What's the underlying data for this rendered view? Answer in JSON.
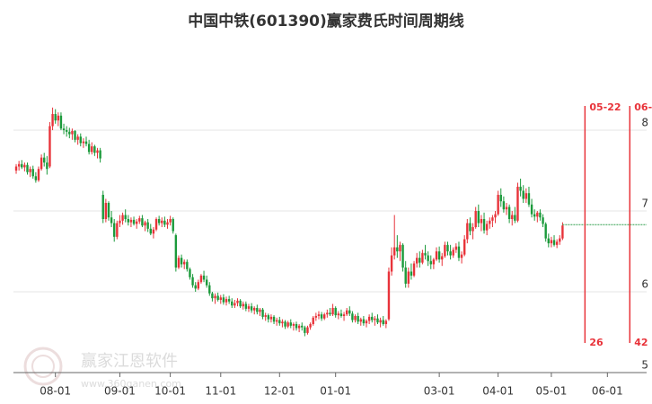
{
  "chart_data": {
    "type": "candlestick",
    "title": "中国中铁(601390)赢家费氏时间周期线",
    "up_color": "#e8333a",
    "down_color": "#1b9a3b",
    "grid": true,
    "ylim": [
      5,
      9
    ],
    "yticks": [
      5,
      6,
      7,
      8
    ],
    "xlim": [
      -1,
      225
    ],
    "xticks": [
      {
        "value": 14,
        "label": "08-01"
      },
      {
        "value": 37,
        "label": "09-01"
      },
      {
        "value": 55,
        "label": "10-01"
      },
      {
        "value": 73,
        "label": "11-01"
      },
      {
        "value": 94,
        "label": "12-01"
      },
      {
        "value": 114,
        "label": "01-01"
      },
      {
        "value": 151,
        "label": "03-01"
      },
      {
        "value": 172,
        "label": "04-01"
      },
      {
        "value": 191,
        "label": "05-01"
      },
      {
        "value": 211,
        "label": "06-01"
      }
    ],
    "reference_line": {
      "value": 6.83,
      "color": "#2e9e4a"
    },
    "cycle_lines": [
      {
        "x": 203,
        "label": "05-22",
        "count": 26,
        "color": "#e8333a"
      },
      {
        "x": 219,
        "label": "06-",
        "count": 42,
        "color": "#e8333a"
      }
    ],
    "watermark": {
      "name": "赢家江恩软件",
      "url": "www.360ganen.com"
    },
    "ohlc": [
      [
        7.5,
        7.58,
        7.46,
        7.55
      ],
      [
        7.55,
        7.62,
        7.5,
        7.58
      ],
      [
        7.58,
        7.63,
        7.52,
        7.54
      ],
      [
        7.54,
        7.6,
        7.49,
        7.57
      ],
      [
        7.57,
        7.6,
        7.45,
        7.48
      ],
      [
        7.48,
        7.55,
        7.42,
        7.52
      ],
      [
        7.52,
        7.56,
        7.4,
        7.43
      ],
      [
        7.43,
        7.48,
        7.35,
        7.38
      ],
      [
        7.38,
        7.55,
        7.36,
        7.52
      ],
      [
        7.52,
        7.7,
        7.5,
        7.66
      ],
      [
        7.66,
        7.72,
        7.55,
        7.6
      ],
      [
        7.6,
        7.68,
        7.45,
        7.52
      ],
      [
        7.55,
        8.1,
        7.53,
        8.05
      ],
      [
        8.05,
        8.28,
        8.0,
        8.2
      ],
      [
        8.2,
        8.26,
        8.08,
        8.12
      ],
      [
        8.12,
        8.22,
        8.05,
        8.18
      ],
      [
        8.18,
        8.22,
        8.0,
        8.02
      ],
      [
        8.02,
        8.08,
        7.95,
        8.0
      ],
      [
        8.0,
        8.05,
        7.92,
        7.98
      ],
      [
        7.98,
        8.03,
        7.9,
        7.95
      ],
      [
        7.95,
        8.02,
        7.88,
        7.99
      ],
      [
        7.99,
        8.0,
        7.85,
        7.88
      ],
      [
        7.88,
        7.95,
        7.82,
        7.92
      ],
      [
        7.92,
        7.96,
        7.8,
        7.84
      ],
      [
        7.84,
        7.9,
        7.78,
        7.86
      ],
      [
        7.86,
        7.92,
        7.8,
        7.83
      ],
      [
        7.83,
        7.88,
        7.7,
        7.73
      ],
      [
        7.73,
        7.85,
        7.7,
        7.8
      ],
      [
        7.8,
        7.82,
        7.68,
        7.72
      ],
      [
        7.72,
        7.78,
        7.65,
        7.75
      ],
      [
        7.75,
        7.78,
        7.6,
        7.65
      ],
      [
        7.2,
        7.25,
        6.85,
        6.9
      ],
      [
        6.9,
        7.15,
        6.86,
        7.1
      ],
      [
        7.1,
        7.12,
        6.88,
        6.92
      ],
      [
        6.92,
        7.0,
        6.8,
        6.85
      ],
      [
        6.85,
        6.9,
        6.62,
        6.68
      ],
      [
        6.68,
        6.88,
        6.65,
        6.85
      ],
      [
        6.85,
        6.95,
        6.8,
        6.88
      ],
      [
        6.88,
        6.98,
        6.83,
        6.95
      ],
      [
        6.95,
        7.02,
        6.86,
        6.9
      ],
      [
        6.9,
        6.95,
        6.82,
        6.86
      ],
      [
        6.86,
        6.92,
        6.8,
        6.89
      ],
      [
        6.89,
        6.93,
        6.82,
        6.84
      ],
      [
        6.84,
        6.9,
        6.78,
        6.87
      ],
      [
        6.87,
        6.94,
        6.84,
        6.91
      ],
      [
        6.91,
        6.95,
        6.8,
        6.82
      ],
      [
        6.82,
        6.88,
        6.75,
        6.86
      ],
      [
        6.86,
        6.9,
        6.74,
        6.78
      ],
      [
        6.78,
        6.84,
        6.7,
        6.72
      ],
      [
        6.72,
        6.8,
        6.66,
        6.77
      ],
      [
        6.77,
        6.92,
        6.75,
        6.9
      ],
      [
        6.9,
        6.94,
        6.82,
        6.85
      ],
      [
        6.85,
        6.92,
        6.8,
        6.88
      ],
      [
        6.88,
        6.93,
        6.8,
        6.83
      ],
      [
        6.83,
        6.9,
        6.78,
        6.86
      ],
      [
        6.86,
        6.94,
        6.82,
        6.9
      ],
      [
        6.9,
        6.92,
        6.72,
        6.75
      ],
      [
        6.7,
        6.72,
        6.25,
        6.3
      ],
      [
        6.3,
        6.45,
        6.28,
        6.42
      ],
      [
        6.42,
        6.46,
        6.3,
        6.34
      ],
      [
        6.34,
        6.4,
        6.28,
        6.37
      ],
      [
        6.37,
        6.4,
        6.25,
        6.28
      ],
      [
        6.28,
        6.3,
        6.15,
        6.18
      ],
      [
        6.18,
        6.22,
        6.05,
        6.08
      ],
      [
        6.08,
        6.12,
        6.0,
        6.04
      ],
      [
        6.04,
        6.15,
        6.02,
        6.12
      ],
      [
        6.12,
        6.22,
        6.1,
        6.2
      ],
      [
        6.2,
        6.26,
        6.12,
        6.15
      ],
      [
        6.15,
        6.2,
        6.05,
        6.08
      ],
      [
        6.08,
        6.12,
        5.95,
        5.98
      ],
      [
        5.98,
        6.0,
        5.88,
        5.92
      ],
      [
        5.92,
        5.98,
        5.85,
        5.95
      ],
      [
        5.95,
        5.99,
        5.88,
        5.9
      ],
      [
        5.9,
        5.96,
        5.85,
        5.93
      ],
      [
        5.93,
        5.97,
        5.84,
        5.87
      ],
      [
        5.87,
        5.94,
        5.83,
        5.91
      ],
      [
        5.91,
        5.95,
        5.85,
        5.88
      ],
      [
        5.88,
        5.92,
        5.8,
        5.83
      ],
      [
        5.83,
        5.9,
        5.8,
        5.86
      ],
      [
        5.86,
        5.92,
        5.82,
        5.89
      ],
      [
        5.89,
        5.91,
        5.8,
        5.82
      ],
      [
        5.82,
        5.88,
        5.78,
        5.85
      ],
      [
        5.85,
        5.88,
        5.76,
        5.79
      ],
      [
        5.79,
        5.85,
        5.75,
        5.82
      ],
      [
        5.82,
        5.86,
        5.74,
        5.77
      ],
      [
        5.77,
        5.82,
        5.72,
        5.8
      ],
      [
        5.8,
        5.84,
        5.72,
        5.75
      ],
      [
        5.75,
        5.8,
        5.7,
        5.78
      ],
      [
        5.78,
        5.8,
        5.66,
        5.69
      ],
      [
        5.69,
        5.74,
        5.64,
        5.71
      ],
      [
        5.71,
        5.73,
        5.62,
        5.66
      ],
      [
        5.66,
        5.72,
        5.62,
        5.69
      ],
      [
        5.69,
        5.71,
        5.6,
        5.63
      ],
      [
        5.63,
        5.68,
        5.58,
        5.65
      ],
      [
        5.65,
        5.69,
        5.58,
        5.61
      ],
      [
        5.61,
        5.66,
        5.56,
        5.63
      ],
      [
        5.63,
        5.65,
        5.54,
        5.57
      ],
      [
        5.57,
        5.64,
        5.55,
        5.62
      ],
      [
        5.62,
        5.66,
        5.55,
        5.58
      ],
      [
        5.58,
        5.62,
        5.52,
        5.6
      ],
      [
        5.6,
        5.63,
        5.52,
        5.55
      ],
      [
        5.55,
        5.6,
        5.5,
        5.58
      ],
      [
        5.58,
        5.62,
        5.52,
        5.56
      ],
      [
        5.56,
        5.58,
        5.45,
        5.49
      ],
      [
        5.49,
        5.58,
        5.47,
        5.56
      ],
      [
        5.56,
        5.62,
        5.53,
        5.6
      ],
      [
        5.6,
        5.7,
        5.58,
        5.68
      ],
      [
        5.68,
        5.74,
        5.64,
        5.7
      ],
      [
        5.7,
        5.76,
        5.66,
        5.72
      ],
      [
        5.72,
        5.75,
        5.64,
        5.67
      ],
      [
        5.67,
        5.74,
        5.65,
        5.72
      ],
      [
        5.72,
        5.78,
        5.68,
        5.74
      ],
      [
        5.74,
        5.8,
        5.7,
        5.72
      ],
      [
        5.72,
        5.85,
        5.7,
        5.8
      ],
      [
        5.8,
        5.82,
        5.68,
        5.71
      ],
      [
        5.71,
        5.76,
        5.66,
        5.73
      ],
      [
        5.73,
        5.78,
        5.68,
        5.7
      ],
      [
        5.7,
        5.75,
        5.64,
        5.72
      ],
      [
        5.72,
        5.8,
        5.7,
        5.77
      ],
      [
        5.77,
        5.82,
        5.7,
        5.73
      ],
      [
        5.73,
        5.76,
        5.62,
        5.65
      ],
      [
        5.65,
        5.72,
        5.62,
        5.7
      ],
      [
        5.7,
        5.74,
        5.6,
        5.63
      ],
      [
        5.63,
        5.68,
        5.58,
        5.66
      ],
      [
        5.66,
        5.7,
        5.58,
        5.61
      ],
      [
        5.61,
        5.66,
        5.56,
        5.64
      ],
      [
        5.64,
        5.72,
        5.6,
        5.69
      ],
      [
        5.69,
        5.74,
        5.62,
        5.65
      ],
      [
        5.65,
        5.7,
        5.58,
        5.67
      ],
      [
        5.67,
        5.72,
        5.6,
        5.62
      ],
      [
        5.62,
        5.68,
        5.56,
        5.65
      ],
      [
        5.65,
        5.7,
        5.58,
        5.6
      ],
      [
        5.6,
        5.66,
        5.55,
        5.64
      ],
      [
        5.66,
        6.3,
        5.64,
        6.25
      ],
      [
        6.25,
        6.55,
        6.2,
        6.45
      ],
      [
        6.45,
        6.95,
        6.4,
        6.55
      ],
      [
        6.55,
        6.7,
        6.42,
        6.5
      ],
      [
        6.5,
        6.62,
        6.38,
        6.58
      ],
      [
        6.58,
        6.6,
        6.25,
        6.3
      ],
      [
        6.3,
        6.38,
        6.05,
        6.1
      ],
      [
        6.1,
        6.3,
        6.05,
        6.25
      ],
      [
        6.25,
        6.35,
        6.15,
        6.2
      ],
      [
        6.2,
        6.38,
        6.18,
        6.35
      ],
      [
        6.35,
        6.48,
        6.3,
        6.42
      ],
      [
        6.42,
        6.5,
        6.3,
        6.36
      ],
      [
        6.36,
        6.52,
        6.34,
        6.48
      ],
      [
        6.48,
        6.58,
        6.4,
        6.45
      ],
      [
        6.45,
        6.5,
        6.32,
        6.38
      ],
      [
        6.38,
        6.45,
        6.28,
        6.34
      ],
      [
        6.34,
        6.42,
        6.28,
        6.4
      ],
      [
        6.4,
        6.55,
        6.38,
        6.5
      ],
      [
        6.5,
        6.56,
        6.36,
        6.4
      ],
      [
        6.4,
        6.48,
        6.32,
        6.44
      ],
      [
        6.44,
        6.62,
        6.42,
        6.58
      ],
      [
        6.58,
        6.62,
        6.45,
        6.5
      ],
      [
        6.5,
        6.58,
        6.4,
        6.45
      ],
      [
        6.45,
        6.55,
        6.42,
        6.52
      ],
      [
        6.52,
        6.6,
        6.48,
        6.56
      ],
      [
        6.56,
        6.62,
        6.38,
        6.42
      ],
      [
        6.42,
        6.5,
        6.35,
        6.46
      ],
      [
        6.46,
        6.7,
        6.44,
        6.65
      ],
      [
        6.65,
        6.9,
        6.6,
        6.85
      ],
      [
        6.85,
        6.92,
        6.7,
        6.75
      ],
      [
        6.75,
        6.85,
        6.65,
        6.8
      ],
      [
        6.8,
        7.05,
        6.78,
        7.0
      ],
      [
        7.0,
        7.08,
        6.8,
        6.85
      ],
      [
        6.85,
        6.95,
        6.75,
        6.9
      ],
      [
        6.9,
        6.98,
        6.72,
        6.76
      ],
      [
        6.76,
        6.88,
        6.7,
        6.84
      ],
      [
        6.84,
        6.92,
        6.78,
        6.88
      ],
      [
        6.88,
        6.95,
        6.8,
        6.92
      ],
      [
        6.92,
        7.0,
        6.85,
        6.96
      ],
      [
        6.96,
        7.25,
        6.94,
        7.2
      ],
      [
        7.2,
        7.28,
        7.05,
        7.12
      ],
      [
        7.12,
        7.18,
        6.98,
        7.02
      ],
      [
        7.02,
        7.1,
        6.95,
        7.05
      ],
      [
        7.05,
        7.08,
        6.85,
        6.9
      ],
      [
        6.9,
        7.0,
        6.82,
        6.95
      ],
      [
        6.95,
        7.05,
        6.85,
        6.88
      ],
      [
        6.88,
        7.35,
        6.86,
        7.3
      ],
      [
        7.3,
        7.4,
        7.18,
        7.25
      ],
      [
        7.25,
        7.32,
        7.1,
        7.15
      ],
      [
        7.15,
        7.28,
        7.1,
        7.22
      ],
      [
        7.22,
        7.3,
        7.05,
        7.08
      ],
      [
        7.08,
        7.15,
        6.92,
        6.96
      ],
      [
        6.96,
        7.02,
        6.88,
        6.93
      ],
      [
        6.93,
        7.0,
        6.86,
        6.98
      ],
      [
        6.98,
        7.02,
        6.88,
        6.92
      ],
      [
        6.92,
        6.96,
        6.8,
        6.84
      ],
      [
        6.84,
        6.86,
        6.62,
        6.66
      ],
      [
        6.66,
        6.72,
        6.55,
        6.6
      ],
      [
        6.6,
        6.68,
        6.55,
        6.64
      ],
      [
        6.64,
        6.7,
        6.56,
        6.58
      ],
      [
        6.58,
        6.65,
        6.54,
        6.62
      ],
      [
        6.62,
        6.7,
        6.58,
        6.66
      ],
      [
        6.66,
        6.86,
        6.64,
        6.82
      ]
    ]
  }
}
